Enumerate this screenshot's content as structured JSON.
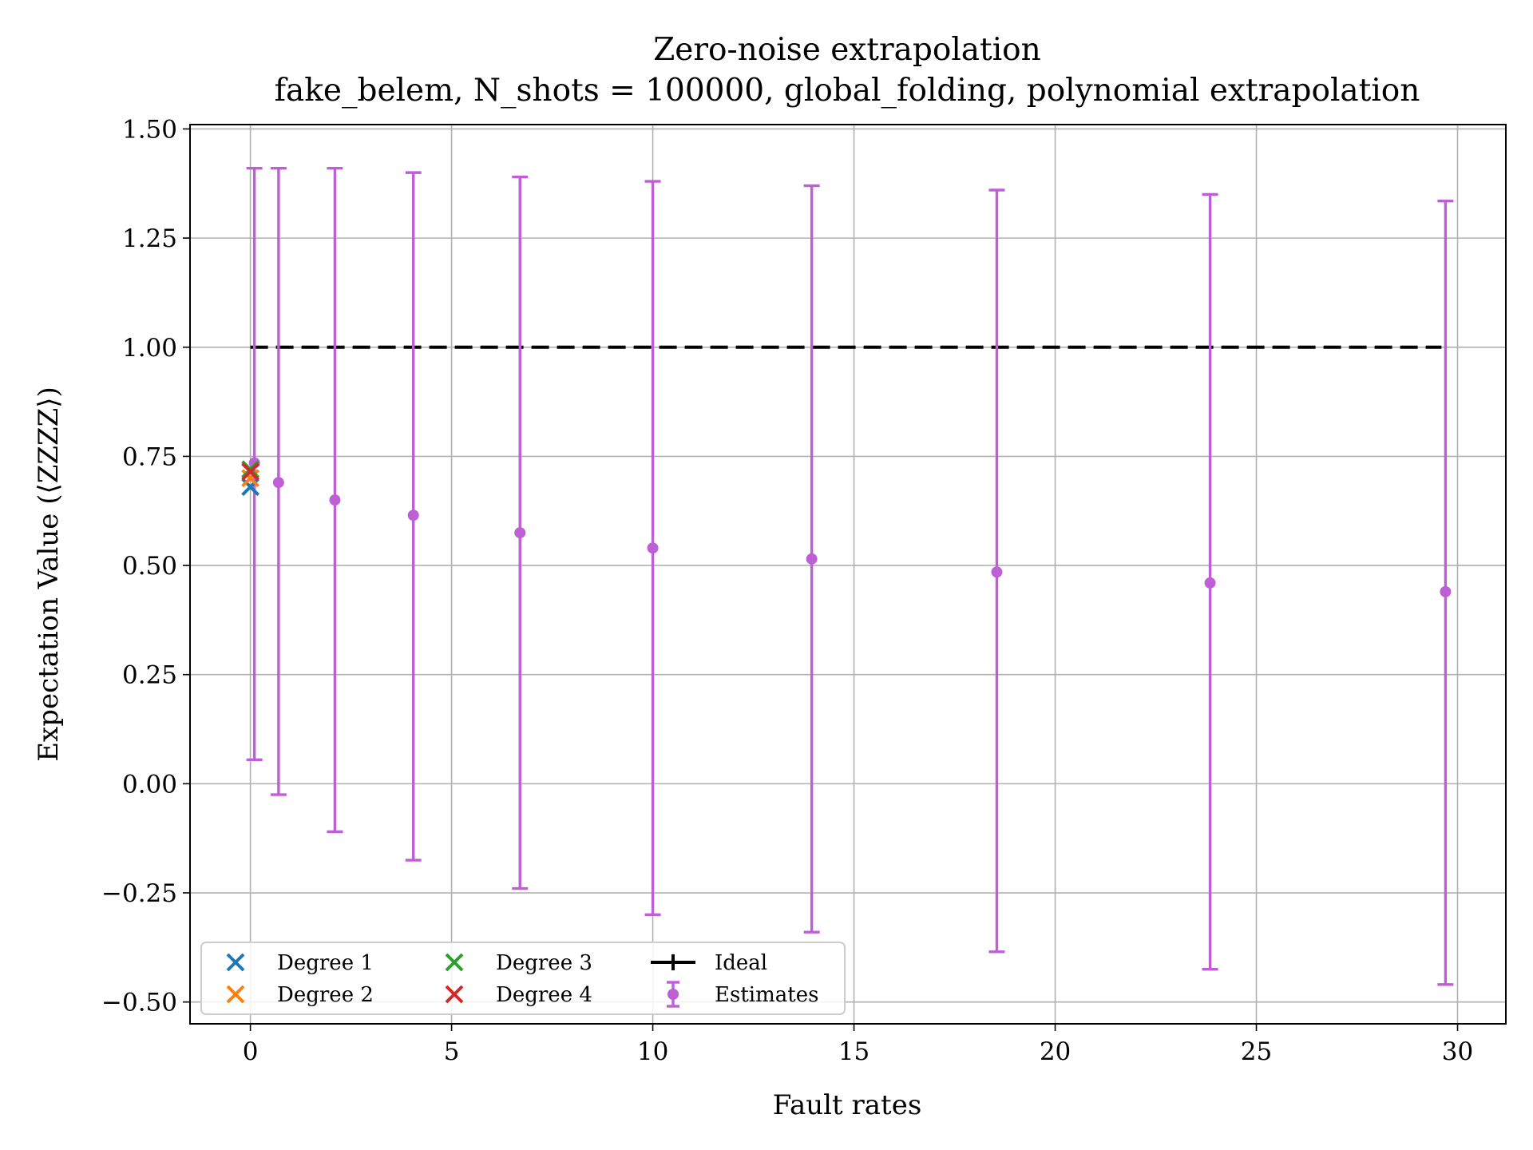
{
  "chart_data": {
    "type": "scatter",
    "title": "Zero-noise extrapolation",
    "subtitle": "fake_belem, N_shots = 100000, global_folding, polynomial extrapolation",
    "xlabel": "Fault rates",
    "ylabel": "Expectation Value (⟨ZZZZ⟩)",
    "xlim": [
      -1.5,
      31.2
    ],
    "ylim": [
      -0.55,
      1.51
    ],
    "xticks": [
      0,
      5,
      10,
      15,
      20,
      25,
      30
    ],
    "xtick_labels": [
      "0",
      "5",
      "10",
      "15",
      "20",
      "25",
      "30"
    ],
    "yticks": [
      -0.5,
      -0.25,
      0.0,
      0.25,
      0.5,
      0.75,
      1.0,
      1.25,
      1.5
    ],
    "ytick_labels": [
      "−0.50",
      "−0.25",
      "0.00",
      "0.25",
      "0.50",
      "0.75",
      "1.00",
      "1.25",
      "1.50"
    ],
    "grid": true,
    "legend_position": "bottom-left",
    "legend_columns": 3,
    "series": [
      {
        "name": "Degree 1",
        "kind": "marker-x",
        "color": "#1f77b4",
        "x": [
          0
        ],
        "y": [
          0.68
        ]
      },
      {
        "name": "Degree 2",
        "kind": "marker-x",
        "color": "#ff7f0e",
        "x": [
          0
        ],
        "y": [
          0.7
        ]
      },
      {
        "name": "Degree 3",
        "kind": "marker-x",
        "color": "#2ca02c",
        "x": [
          0
        ],
        "y": [
          0.72
        ]
      },
      {
        "name": "Degree 4",
        "kind": "marker-x",
        "color": "#d62728",
        "x": [
          0
        ],
        "y": [
          0.715
        ]
      },
      {
        "name": "Ideal",
        "kind": "dashed-line",
        "color": "#000000",
        "x": [
          0,
          29.6
        ],
        "y": [
          1.0,
          1.0
        ]
      },
      {
        "name": "Estimates",
        "kind": "errorbar",
        "color": "#bf5fd6",
        "x": [
          0.1,
          0.7,
          2.1,
          4.05,
          6.7,
          10.0,
          13.95,
          18.55,
          23.85,
          29.7
        ],
        "y": [
          0.735,
          0.69,
          0.65,
          0.615,
          0.575,
          0.54,
          0.515,
          0.485,
          0.46,
          0.44
        ],
        "err_low": [
          0.055,
          -0.025,
          -0.11,
          -0.175,
          -0.24,
          -0.3,
          -0.34,
          -0.385,
          -0.425,
          -0.46
        ],
        "err_high": [
          1.41,
          1.41,
          1.41,
          1.4,
          1.39,
          1.38,
          1.37,
          1.36,
          1.35,
          1.335
        ]
      }
    ]
  }
}
